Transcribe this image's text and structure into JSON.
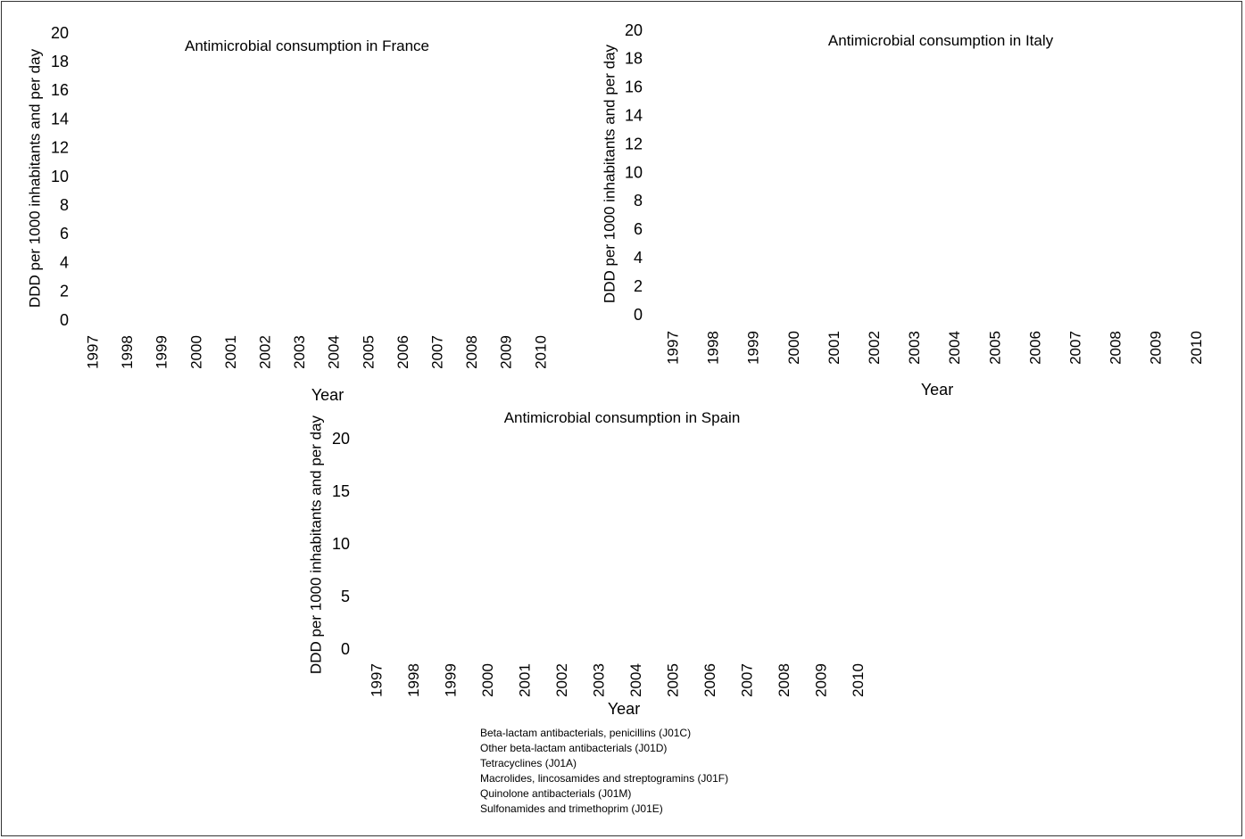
{
  "chart_data": [
    {
      "type": "bar",
      "title": "Antimicrobial consumption in France",
      "xlabel": "Year",
      "ylabel": "DDD per 1000 inhabitants and per day",
      "categories": [
        "1997",
        "1998",
        "1999",
        "2000",
        "2001",
        "2002",
        "2003",
        "2004",
        "2005",
        "2006",
        "2007",
        "2008",
        "2009",
        "2010"
      ],
      "ylim": [
        0,
        20
      ],
      "yticks": [
        "0",
        "2",
        "4",
        "6",
        "8",
        "10",
        "12",
        "14",
        "16",
        "18",
        "20"
      ],
      "series": []
    },
    {
      "type": "bar",
      "title": "Antimicrobial consumption in Italy",
      "xlabel": "Year",
      "ylabel": "DDD per 1000 inhabitants and per day",
      "categories": [
        "1997",
        "1998",
        "1999",
        "2000",
        "2001",
        "2002",
        "2003",
        "2004",
        "2005",
        "2006",
        "2007",
        "2008",
        "2009",
        "2010"
      ],
      "ylim": [
        0,
        20
      ],
      "yticks": [
        "0",
        "2",
        "4",
        "6",
        "8",
        "10",
        "12",
        "14",
        "16",
        "18",
        "20"
      ],
      "series": []
    },
    {
      "type": "bar",
      "title": "Antimicrobial consumption in Spain",
      "xlabel": "Year",
      "ylabel": "DDD per 1000 inhabitants and per day",
      "categories": [
        "1997",
        "1998",
        "1999",
        "2000",
        "2001",
        "2002",
        "2003",
        "2004",
        "2005",
        "2006",
        "2007",
        "2008",
        "2009",
        "2010"
      ],
      "ylim": [
        0,
        20
      ],
      "yticks": [
        "0",
        "5",
        "10",
        "15",
        "20"
      ],
      "series": []
    }
  ],
  "legend": [
    "Beta-lactam antibacterials, penicillins (J01C)",
    "Other beta-lactam antibacterials (J01D)",
    "Tetracyclines (J01A)",
    "Macrolides, lincosamides and streptogramins (J01F)",
    "Quinolone antibacterials (J01M)",
    "Sulfonamides and trimethoprim (J01E)"
  ]
}
